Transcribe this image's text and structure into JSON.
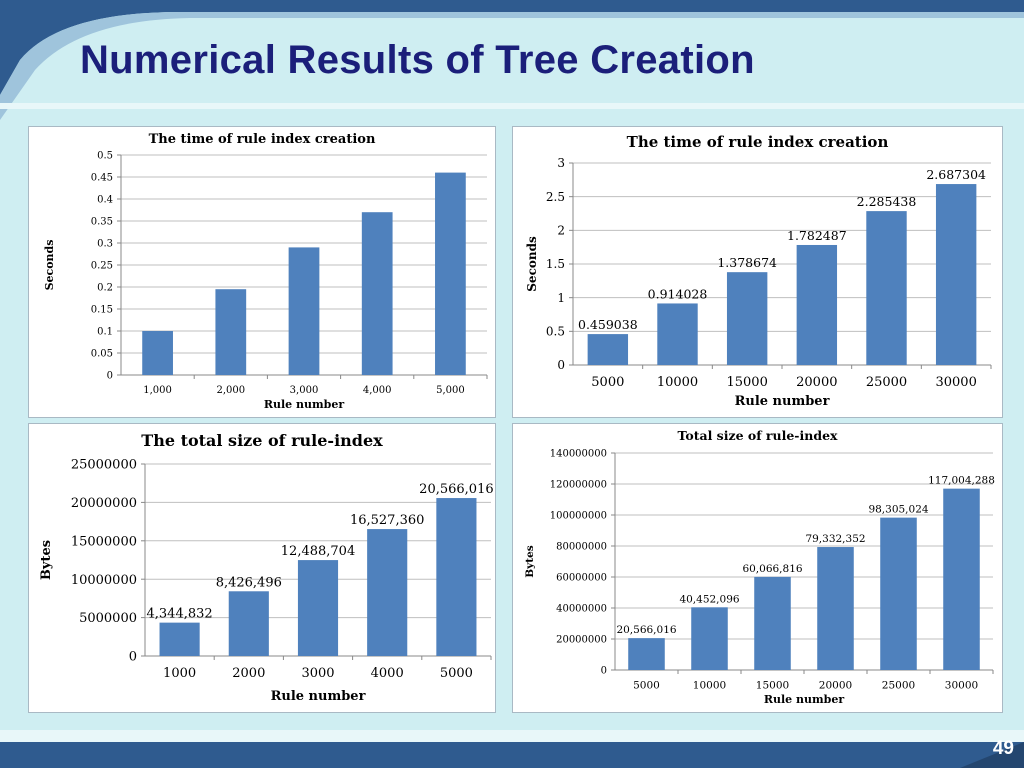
{
  "slide": {
    "title": "Numerical Results of Tree Creation",
    "page_number": "49"
  },
  "colors": {
    "bar": "#4f81bd",
    "grid": "#bfbfbf",
    "title_text": "#1b1f7a",
    "background": "#cfeef2",
    "band": "#2f5b8f"
  },
  "chart_data": [
    {
      "type": "bar",
      "title": "The time of rule index creation",
      "xlabel": "Rule number",
      "ylabel": "Seconds",
      "categories": [
        "1,000",
        "2,000",
        "3,000",
        "4,000",
        "5,000"
      ],
      "values": [
        0.1,
        0.195,
        0.29,
        0.37,
        0.46
      ],
      "ylim": [
        0,
        0.5
      ],
      "yticks": [
        "0",
        "0.05",
        "0.1",
        "0.15",
        "0.2",
        "0.25",
        "0.3",
        "0.35",
        "0.4",
        "0.45",
        "0.5"
      ],
      "data_labels": [],
      "grid": true
    },
    {
      "type": "bar",
      "title": "The time of rule index creation",
      "xlabel": "Rule number",
      "ylabel": "Seconds",
      "categories": [
        "5000",
        "10000",
        "15000",
        "20000",
        "25000",
        "30000"
      ],
      "values": [
        0.459038,
        0.914028,
        1.378674,
        1.782487,
        2.285438,
        2.687304
      ],
      "ylim": [
        0,
        3
      ],
      "yticks": [
        "0",
        "0.5",
        "1",
        "1.5",
        "2",
        "2.5",
        "3"
      ],
      "data_labels": [
        "0.459038",
        "0.914028",
        "1.378674",
        "1.782487",
        "2.285438",
        "2.687304"
      ],
      "grid": true
    },
    {
      "type": "bar",
      "title": "The total size of rule-index",
      "xlabel": "Rule number",
      "ylabel": "Bytes",
      "categories": [
        "1000",
        "2000",
        "3000",
        "4000",
        "5000"
      ],
      "values": [
        4344832,
        8426496,
        12488704,
        16527360,
        20566016
      ],
      "ylim": [
        0,
        25000000
      ],
      "yticks": [
        "0",
        "5000000",
        "10000000",
        "15000000",
        "20000000",
        "25000000"
      ],
      "data_labels": [
        "4,344,832",
        "8,426,496",
        "12,488,704",
        "16,527,360",
        "20,566,016"
      ],
      "grid": true
    },
    {
      "type": "bar",
      "title": "Total size of rule-index",
      "xlabel": "Rule number",
      "ylabel": "Bytes",
      "categories": [
        "5000",
        "10000",
        "15000",
        "20000",
        "25000",
        "30000"
      ],
      "values": [
        20566016,
        40452096,
        60066816,
        79332352,
        98305024,
        117004288
      ],
      "ylim": [
        0,
        140000000
      ],
      "yticks": [
        "0",
        "20000000",
        "40000000",
        "60000000",
        "80000000",
        "100000000",
        "120000000",
        "140000000"
      ],
      "data_labels": [
        "20,566,016",
        "40,452,096",
        "60,066,816",
        "79,332,352",
        "98,305,024",
        "117,004,288"
      ],
      "grid": true
    }
  ]
}
